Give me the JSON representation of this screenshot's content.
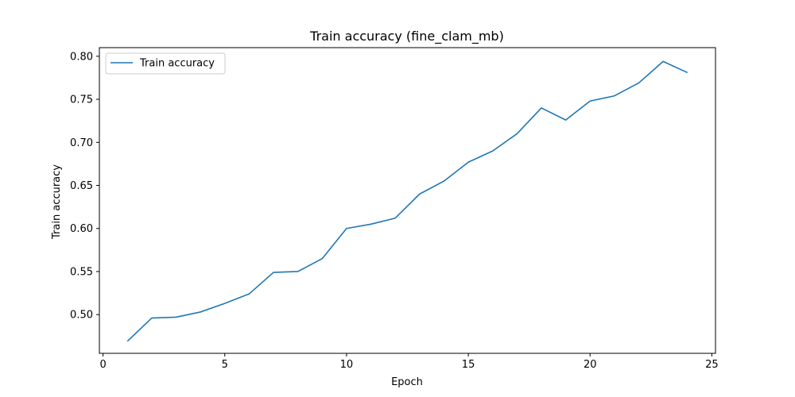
{
  "chart_data": {
    "type": "line",
    "title": "Train accuracy (fine_clam_mb)",
    "xlabel": "Epoch",
    "ylabel": "Train accuracy",
    "xlim": [
      -0.15,
      25.15
    ],
    "ylim": [
      0.455,
      0.81
    ],
    "xticks": [
      0,
      5,
      10,
      15,
      20,
      25
    ],
    "yticks": [
      0.5,
      0.55,
      0.6,
      0.65,
      0.7,
      0.75,
      0.8
    ],
    "xtick_labels": [
      "0",
      "5",
      "10",
      "15",
      "20",
      "25"
    ],
    "ytick_labels": [
      "0.50",
      "0.55",
      "0.60",
      "0.65",
      "0.70",
      "0.75",
      "0.80"
    ],
    "grid": false,
    "legend_position": "top-left",
    "series": [
      {
        "name": "Train accuracy",
        "color": "#1f77b4",
        "x": [
          1,
          2,
          3,
          4,
          5,
          6,
          7,
          8,
          9,
          10,
          11,
          12,
          13,
          14,
          15,
          16,
          17,
          18,
          19,
          20,
          21,
          22,
          23,
          24
        ],
        "y": [
          0.469,
          0.496,
          0.497,
          0.503,
          0.513,
          0.524,
          0.549,
          0.55,
          0.565,
          0.6,
          0.605,
          0.612,
          0.64,
          0.655,
          0.677,
          0.69,
          0.71,
          0.74,
          0.726,
          0.748,
          0.754,
          0.769,
          0.794,
          0.781
        ]
      }
    ]
  }
}
